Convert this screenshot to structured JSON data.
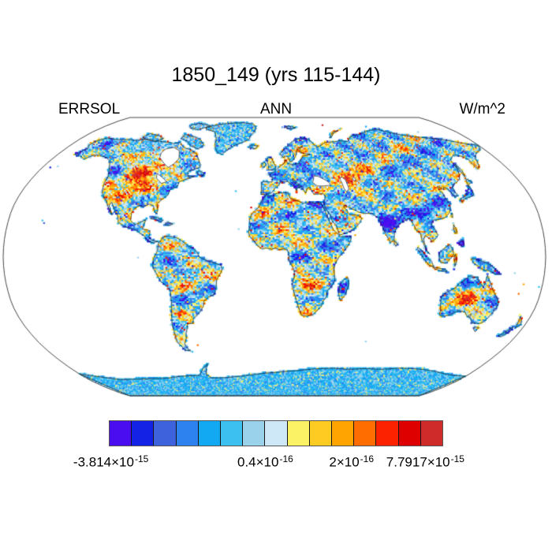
{
  "header": {
    "title": "1850_149 (yrs 115-144)"
  },
  "labels": {
    "variable": "ERRSOL",
    "season": "ANN",
    "units": "W/m^2"
  },
  "colorbar": {
    "colors": [
      "#4A0DF0",
      "#1422E6",
      "#3E62DC",
      "#2E82F0",
      "#12A9F2",
      "#3CC0F0",
      "#9AD2EC",
      "#CFE8F8",
      "#FCF266",
      "#FDCB22",
      "#FFA400",
      "#FF6D00",
      "#FC2200",
      "#DE0000",
      "#CF2B2B"
    ],
    "ticks": [
      {
        "pos": 0.005,
        "base": "-3.814×10",
        "sup": "-15"
      },
      {
        "pos": 0.469,
        "base": "0.4×10",
        "sup": "-16"
      },
      {
        "pos": 0.728,
        "base": "2×10",
        "sup": "-16"
      },
      {
        "pos": 0.95,
        "base": "7.7917×10",
        "sup": "-15"
      }
    ]
  },
  "chart_data": {
    "type": "heatmap",
    "title": "1850_149 (yrs 115-144)",
    "variable": "ERRSOL",
    "season": "ANN",
    "units": "W/m^2",
    "projection": "robinson",
    "coverage": "global land cells only (oceans blank)",
    "n_color_bins": 15,
    "bin_colors": [
      "#4A0DF0",
      "#1422E6",
      "#3E62DC",
      "#2E82F0",
      "#12A9F2",
      "#3CC0F0",
      "#9AD2EC",
      "#CFE8F8",
      "#FCF266",
      "#FDCB22",
      "#FFA400",
      "#FF6D00",
      "#FC2200",
      "#DE0000",
      "#CF2B2B"
    ],
    "labeled_levels": [
      "-3.814e-15",
      "0.4e-16",
      "2e-16",
      "7.7917e-15"
    ],
    "value_range": [
      -3.814e-15,
      7.7917e-15
    ],
    "legend_position": "bottom"
  }
}
